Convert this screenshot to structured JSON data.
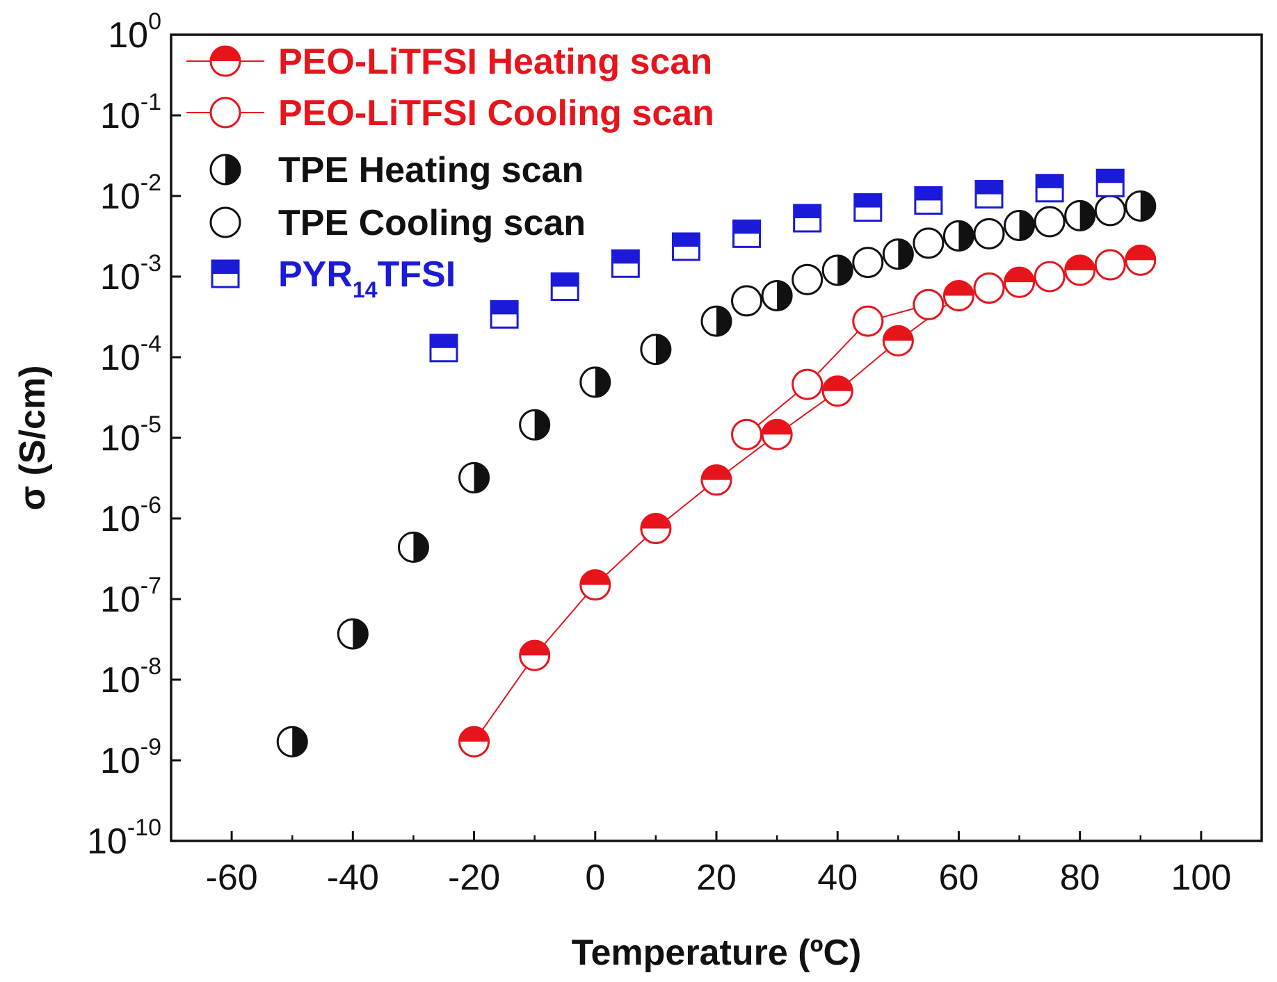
{
  "chart_data": {
    "type": "scatter",
    "xlabel": "Temperature (ºC)",
    "ylabel": "σ (S/cm)",
    "xlim": [
      -70,
      110
    ],
    "ylim_log10": [
      -10,
      0
    ],
    "y_scale": "log",
    "x_ticks": [
      -60,
      -40,
      -20,
      0,
      20,
      40,
      60,
      80,
      100
    ],
    "x_tick_labels": [
      "-60",
      "-40",
      "-20",
      "0",
      "20",
      "40",
      "60",
      "80",
      "100"
    ],
    "y_ticks": [
      {
        "exp": 0,
        "base": "10",
        "sup": "0"
      },
      {
        "exp": -1,
        "base": "10",
        "sup": "-1"
      },
      {
        "exp": -2,
        "base": "10",
        "sup": "-2"
      },
      {
        "exp": -3,
        "base": "10",
        "sup": "-3"
      },
      {
        "exp": -4,
        "base": "10",
        "sup": "-4"
      },
      {
        "exp": -5,
        "base": "10",
        "sup": "-5"
      },
      {
        "exp": -6,
        "base": "10",
        "sup": "-6"
      },
      {
        "exp": -7,
        "base": "10",
        "sup": "-7"
      },
      {
        "exp": -8,
        "base": "10",
        "sup": "-8"
      },
      {
        "exp": -9,
        "base": "10",
        "sup": "-9"
      },
      {
        "exp": -10,
        "base": "10",
        "sup": "-10"
      }
    ],
    "legend_position": "top-left",
    "series": [
      {
        "name": "PEO-LiTFSI Heating scan",
        "label": "PEO-LiTFSI Heating scan",
        "marker": "circle-top-half",
        "color": "#e8141c",
        "label_color": "#e8141c",
        "line": true,
        "x": [
          -20,
          -10,
          0,
          10,
          20,
          30,
          40,
          50,
          60,
          70,
          80,
          90
        ],
        "y": [
          1.7e-09,
          2e-08,
          1.5e-07,
          7.5e-07,
          3e-06,
          1.1e-05,
          3.8e-05,
          0.00016,
          0.00058,
          0.00085,
          0.0012,
          0.0016
        ]
      },
      {
        "name": "PEO-LiTFSI Cooling scan",
        "label": "PEO-LiTFSI Cooling scan",
        "marker": "circle-open",
        "color": "#e8141c",
        "label_color": "#e8141c",
        "line": true,
        "x": [
          25,
          35,
          45,
          55,
          65,
          75,
          85
        ],
        "y": [
          1.1e-05,
          4.6e-05,
          0.00028,
          0.00045,
          0.00072,
          0.001,
          0.0014
        ]
      },
      {
        "name": "TPE Heating scan",
        "label": "TPE Heating scan",
        "marker": "circle-right-half",
        "color": "#111111",
        "label_color": "#111111",
        "line": false,
        "x": [
          -50,
          -40,
          -30,
          -20,
          -10,
          0,
          10,
          20,
          30,
          40,
          50,
          60,
          70,
          80,
          90
        ],
        "y": [
          1.7e-09,
          3.7e-08,
          4.4e-07,
          3.2e-06,
          1.45e-05,
          4.9e-05,
          0.000125,
          0.00028,
          0.00058,
          0.0012,
          0.0019,
          0.0032,
          0.0043,
          0.0057,
          0.0075
        ]
      },
      {
        "name": "TPE Cooling scan",
        "label": "TPE Cooling scan",
        "marker": "circle-open",
        "color": "#111111",
        "label_color": "#111111",
        "line": false,
        "x": [
          25,
          35,
          45,
          55,
          65,
          75,
          85
        ],
        "y": [
          0.0005,
          0.00092,
          0.0015,
          0.0026,
          0.0034,
          0.0048,
          0.0066
        ]
      },
      {
        "name": "PYR14TFSI",
        "label": "PYR",
        "label_sub": "14",
        "label_suffix": "TFSI",
        "marker": "square-top-half",
        "color": "#1a1ad8",
        "label_color": "#1a1ad8",
        "line": false,
        "x": [
          -25,
          -15,
          -5,
          5,
          15,
          25,
          35,
          45,
          55,
          65,
          75,
          85
        ],
        "y": [
          0.00013,
          0.00034,
          0.00075,
          0.00145,
          0.00235,
          0.0034,
          0.0053,
          0.0072,
          0.0088,
          0.0105,
          0.0125,
          0.0145
        ]
      }
    ]
  }
}
